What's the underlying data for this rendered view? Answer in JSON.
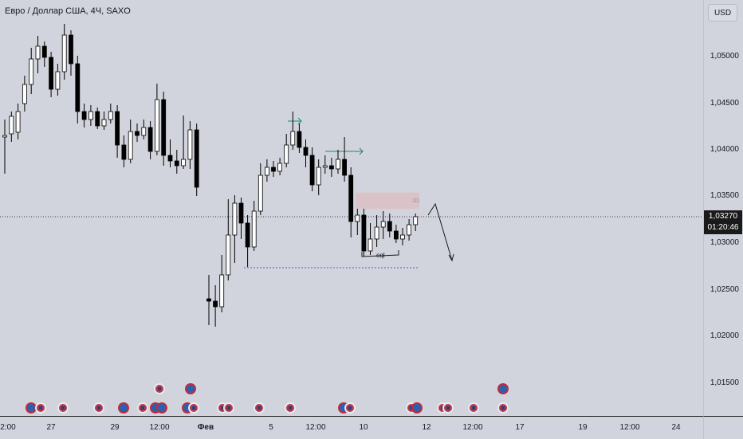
{
  "header": {
    "symbol_title": "Евро / Доллар США, 4Ч, SAXO",
    "currency_button": "USD"
  },
  "price_axis": {
    "labels": [
      "1,05000",
      "1,04500",
      "1,04000",
      "1,03500",
      "1,03000",
      "1,02500",
      "1,02000",
      "1,01500"
    ],
    "current_price": "1,03270",
    "countdown": "01:20:46"
  },
  "time_axis": {
    "labels": [
      "2:00",
      "27",
      "29",
      "12:00",
      "Фев",
      "5",
      "12:00",
      "10",
      "12",
      "12:00",
      "17",
      "19",
      "12:00",
      "24"
    ]
  },
  "annotations": {
    "eql_label": "eql",
    "box_label": "1D"
  },
  "colors": {
    "background": "#d1d4dc",
    "bull_candle": "#ffffff",
    "bear_candle": "#000000",
    "wick": "#000000",
    "arrow_green": "#1b8a6b",
    "dotted_blue": "#4a5bd8",
    "zone_red": "#e8b4bd"
  },
  "event_icons": [
    "us-flag-icon",
    "eu-flag-icon"
  ]
}
